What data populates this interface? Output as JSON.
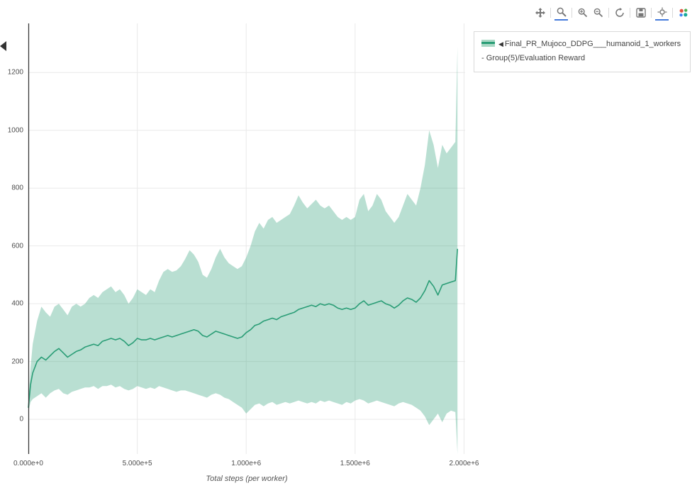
{
  "page": {
    "background": "#ffffff"
  },
  "modebar": {
    "icons": [
      "pan-icon",
      "zoom-icon",
      "zoom-in-icon",
      "zoom-out-icon",
      "autoscale-icon",
      "save-image-icon",
      "spikelines-icon",
      "plotly-logo-icon"
    ],
    "active_icons": [
      "zoom-icon",
      "spikelines-icon"
    ],
    "icon_color": "#777777",
    "active_underline_color": "#447adb"
  },
  "legend": {
    "marker": "◀",
    "label": "Final_PR_Mujoco_DDPG___humanoid_1_workers - Group(5)/Evaluation Reward",
    "line_color": "#2a9d76",
    "band_color": "#a9d8c5"
  },
  "chart_data": {
    "type": "line",
    "title": "",
    "xlabel": "Total steps (per worker)",
    "ylabel": "",
    "grid": true,
    "legend_position": "outside-top-right",
    "xlim_millions": [
      0,
      2.005
    ],
    "ylim": [
      -120,
      1370
    ],
    "xtick_values_millions": [
      0,
      0.5,
      1.0,
      1.5,
      2.0
    ],
    "xtick_labels": [
      "0.000e+0",
      "5.000e+5",
      "1.000e+6",
      "1.500e+6",
      "2.000e+6"
    ],
    "ytick_values": [
      0,
      200,
      400,
      600,
      800,
      1000,
      1200
    ],
    "ytick_labels": [
      "0",
      "200",
      "400",
      "600",
      "800",
      "1000",
      "1200"
    ],
    "colors": {
      "line": "#2a9d76",
      "band": "rgba(42,157,118,0.33)",
      "grid": "#e9e9e9",
      "axis_line": "#333333",
      "tick_text": "#4d4d4d"
    },
    "series": [
      {
        "name": "Final_PR_Mujoco_DDPG___humanoid_1_workers - Group(5)/Evaluation Reward",
        "x_millions": [
          0,
          0.01,
          0.02,
          0.04,
          0.06,
          0.08,
          0.1,
          0.12,
          0.14,
          0.16,
          0.18,
          0.2,
          0.22,
          0.24,
          0.26,
          0.28,
          0.3,
          0.32,
          0.34,
          0.36,
          0.38,
          0.4,
          0.42,
          0.44,
          0.46,
          0.48,
          0.5,
          0.52,
          0.54,
          0.56,
          0.58,
          0.6,
          0.62,
          0.64,
          0.66,
          0.68,
          0.7,
          0.72,
          0.74,
          0.76,
          0.78,
          0.8,
          0.82,
          0.84,
          0.86,
          0.88,
          0.9,
          0.92,
          0.94,
          0.96,
          0.98,
          1.0,
          1.02,
          1.04,
          1.06,
          1.08,
          1.1,
          1.12,
          1.14,
          1.16,
          1.18,
          1.2,
          1.22,
          1.24,
          1.26,
          1.28,
          1.3,
          1.32,
          1.34,
          1.36,
          1.38,
          1.4,
          1.42,
          1.44,
          1.46,
          1.48,
          1.5,
          1.52,
          1.54,
          1.56,
          1.58,
          1.6,
          1.62,
          1.64,
          1.66,
          1.68,
          1.7,
          1.72,
          1.74,
          1.76,
          1.78,
          1.8,
          1.82,
          1.84,
          1.86,
          1.88,
          1.9,
          1.92,
          1.94,
          1.96,
          1.97
        ],
        "mean": [
          40,
          120,
          160,
          200,
          215,
          205,
          220,
          235,
          245,
          230,
          215,
          225,
          235,
          240,
          250,
          255,
          260,
          255,
          270,
          275,
          280,
          275,
          280,
          270,
          255,
          265,
          280,
          275,
          275,
          280,
          275,
          280,
          285,
          290,
          285,
          290,
          295,
          300,
          305,
          310,
          305,
          290,
          285,
          295,
          305,
          300,
          295,
          290,
          285,
          280,
          285,
          300,
          310,
          325,
          330,
          340,
          345,
          350,
          345,
          355,
          360,
          365,
          370,
          380,
          385,
          390,
          395,
          390,
          400,
          395,
          400,
          395,
          385,
          380,
          385,
          380,
          385,
          400,
          410,
          395,
          400,
          405,
          410,
          400,
          395,
          385,
          395,
          410,
          420,
          415,
          405,
          420,
          445,
          480,
          460,
          430,
          465,
          470,
          475,
          480,
          590
        ],
        "band_upper": [
          60,
          180,
          260,
          340,
          390,
          370,
          355,
          390,
          400,
          380,
          360,
          390,
          400,
          390,
          400,
          420,
          430,
          420,
          440,
          450,
          460,
          440,
          450,
          430,
          400,
          420,
          450,
          440,
          430,
          450,
          440,
          480,
          510,
          520,
          510,
          515,
          530,
          555,
          585,
          570,
          545,
          500,
          490,
          520,
          560,
          590,
          560,
          540,
          530,
          520,
          530,
          560,
          600,
          650,
          680,
          660,
          690,
          700,
          680,
          690,
          700,
          710,
          740,
          775,
          750,
          730,
          745,
          760,
          740,
          730,
          740,
          720,
          700,
          690,
          700,
          690,
          700,
          760,
          780,
          720,
          740,
          780,
          760,
          720,
          700,
          680,
          700,
          740,
          780,
          760,
          740,
          800,
          880,
          1000,
          950,
          870,
          950,
          920,
          940,
          960,
          1290
        ],
        "band_lower": [
          25,
          60,
          70,
          80,
          90,
          75,
          90,
          100,
          105,
          90,
          85,
          95,
          100,
          105,
          110,
          110,
          115,
          105,
          115,
          115,
          120,
          110,
          115,
          105,
          100,
          105,
          115,
          110,
          105,
          110,
          105,
          115,
          110,
          105,
          100,
          95,
          100,
          100,
          95,
          90,
          85,
          80,
          75,
          85,
          90,
          85,
          75,
          70,
          60,
          50,
          40,
          20,
          35,
          50,
          55,
          45,
          55,
          60,
          50,
          55,
          60,
          55,
          60,
          65,
          60,
          55,
          60,
          55,
          65,
          60,
          65,
          60,
          55,
          50,
          60,
          55,
          65,
          70,
          65,
          55,
          60,
          65,
          60,
          55,
          50,
          45,
          55,
          60,
          55,
          50,
          40,
          30,
          10,
          -20,
          0,
          20,
          -10,
          20,
          30,
          25,
          -120
        ]
      }
    ]
  }
}
